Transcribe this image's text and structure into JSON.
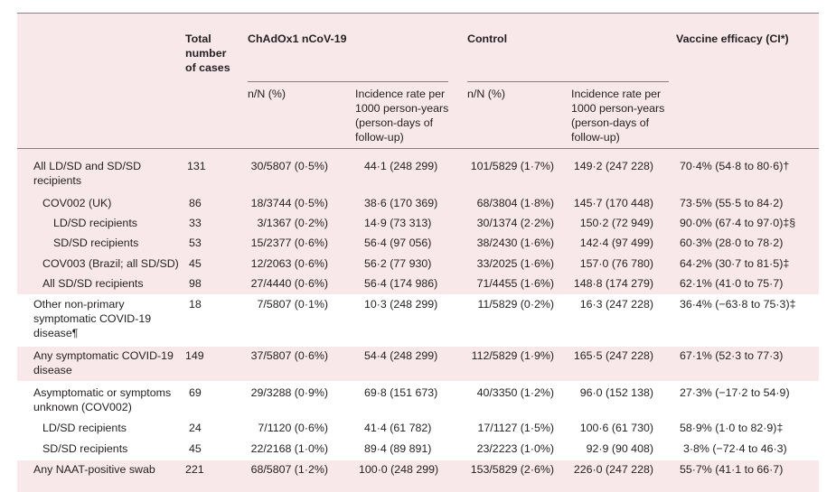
{
  "header": {
    "total_cases": "Total number of cases",
    "vaccine": "ChAdOx1 nCoV-19",
    "control": "Control",
    "efficacy": "Vaccine efficacy (CI*)",
    "nn": "n/N (%)",
    "incidence": "Incidence rate per 1000 person-years (person-days of follow-up)"
  },
  "rows": [
    {
      "label": "All LD/SD and SD/SD recipients",
      "total": "131",
      "v_nn": "30/5807 (0·5%)",
      "v_inc": "44·1 (248 299)",
      "c_nn": "101/5829 (1·7%)",
      "c_inc": "149·2 (247 228)",
      "ve": "70·4% (54·8 to 80·6)†"
    },
    {
      "label": "COV002 (UK)",
      "total": "86",
      "v_nn": "18/3744 (0·5%)",
      "v_inc": "38·6 (170 369)",
      "c_nn": "68/3804 (1·8%)",
      "c_inc": "145·7 (170 448)",
      "ve": "73·5% (55·5 to 84·2)"
    },
    {
      "label": "LD/SD recipients",
      "total": "33",
      "v_nn": "3/1367 (0·2%)",
      "v_inc": "14·9 (73 313)",
      "c_nn": "30/1374 (2·2%)",
      "c_inc": "150·2 (72 949)",
      "ve": "90·0% (67·4 to 97·0)‡§"
    },
    {
      "label": "SD/SD recipients",
      "total": "53",
      "v_nn": "15/2377 (0·6%)",
      "v_inc": "56·4 (97 056)",
      "c_nn": "38/2430 (1·6%)",
      "c_inc": "142·4 (97 499)",
      "ve": "60·3% (28·0 to 78·2)"
    },
    {
      "label": "COV003 (Brazil; all SD/SD)",
      "total": "45",
      "v_nn": "12/2063 (0·6%)",
      "v_inc": "56·2 (77 930)",
      "c_nn": "33/2025 (1·6%)",
      "c_inc": "157·0 (76 780)",
      "ve": "64·2% (30·7 to 81·5)‡"
    },
    {
      "label": "All SD/SD recipients",
      "total": "98",
      "v_nn": "27/4440 (0·6%)",
      "v_inc": "56·4 (174 986)",
      "c_nn": "71/4455 (1·6%)",
      "c_inc": "148·8 (174 279)",
      "ve": "62·1% (41·0 to 75·7)"
    },
    {
      "label": "Other non-primary symptomatic COVID-19 disease¶",
      "total": "18",
      "v_nn": "7/5807 (0·1%)",
      "v_inc": "10·3 (248 299)",
      "c_nn": "11/5829 (0·2%)",
      "c_inc": "16·3 (247 228)",
      "ve": "36·4% (−63·8 to 75·3)‡"
    },
    {
      "label": "Any symptomatic COVID-19 disease",
      "total": "149",
      "v_nn": "37/5807 (0·6%)",
      "v_inc": "54·4 (248 299)",
      "c_nn": "112/5829 (1·9%)",
      "c_inc": "165·5 (247 228)",
      "ve": "67·1% (52·3 to 77·3)"
    },
    {
      "label": "Asymptomatic or symptoms unknown (COV002)",
      "total": "69",
      "v_nn": "29/3288 (0·9%)",
      "v_inc": "69·8 (151 673)",
      "c_nn": "40/3350 (1·2%)",
      "c_inc": "96·0 (152 138)",
      "ve": "27·3% (−17·2 to 54·9)"
    },
    {
      "label": "LD/SD recipients",
      "total": "24",
      "v_nn": "7/1120 (0·6%)",
      "v_inc": "41·4 (61 782)",
      "c_nn": "17/1127 (1·5%)",
      "c_inc": "100·6 (61 730)",
      "ve": "58·9% (1·0 to 82·9)‡"
    },
    {
      "label": "SD/SD recipients",
      "total": "45",
      "v_nn": "22/2168 (1·0%)",
      "v_inc": "89·4 (89 891)",
      "c_nn": "23/2223 (1·0%)",
      "c_inc": "92·9 (90 408)",
      "ve": "3·8% (−72·4 to 46·3)"
    },
    {
      "label": "Any NAAT-positive swab",
      "total": "221",
      "v_nn": "68/5807 (1·2%)",
      "v_inc": "100·0 (248 299)",
      "c_nn": "153/5829 (2·6%)",
      "c_inc": "226·0 (247 228)",
      "ve": "55·7% (41·1 to 66·7)"
    }
  ]
}
